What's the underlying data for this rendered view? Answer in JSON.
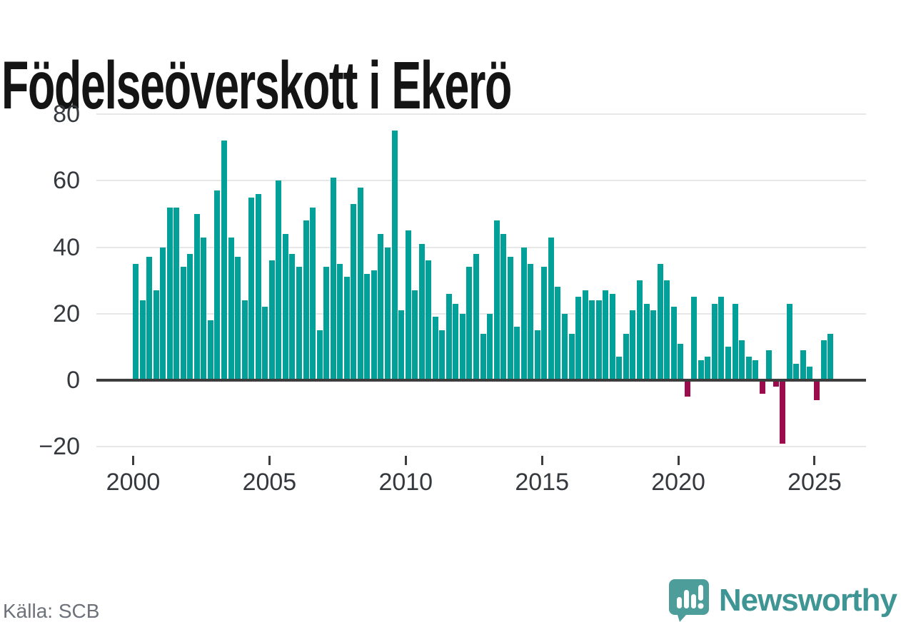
{
  "title": "Födelseöverskott i Ekerö",
  "source": "Källa: SCB",
  "logo": {
    "text": "Newsworthy"
  },
  "colors": {
    "positive_bar": "#01a199",
    "negative_bar": "#9c0c4c",
    "gridline": "#e7e7e7",
    "zero_line": "#3d3d3d",
    "axis_text": "#35393e",
    "title_text": "#141414",
    "source_text": "#6d7179",
    "logo_teal": "#4d9e9b",
    "logo_text_teal": "#3e9593"
  },
  "chart_data": {
    "type": "bar",
    "title": "Födelseöverskott i Ekerö",
    "period": "quarterly",
    "start_year": 2000,
    "values": [
      35,
      24,
      37,
      27,
      40,
      52,
      52,
      34,
      38,
      50,
      43,
      18,
      57,
      72,
      43,
      37,
      24,
      55,
      56,
      22,
      36,
      60,
      44,
      38,
      34,
      48,
      52,
      15,
      34,
      61,
      35,
      31,
      53,
      58,
      32,
      33,
      44,
      40,
      75,
      21,
      45,
      27,
      41,
      36,
      19,
      15,
      26,
      23,
      20,
      34,
      38,
      14,
      20,
      48,
      44,
      37,
      16,
      40,
      35,
      15,
      34,
      43,
      28,
      20,
      14,
      25,
      27,
      24,
      24,
      27,
      26,
      7,
      14,
      21,
      30,
      23,
      21,
      35,
      30,
      22,
      11,
      -5,
      25,
      6,
      7,
      23,
      25,
      10,
      23,
      12,
      7,
      6,
      -4,
      9,
      -2,
      -19,
      23,
      5,
      9,
      4,
      -6,
      12,
      14
    ],
    "x_tick_years": [
      2000,
      2005,
      2010,
      2015,
      2020,
      2025
    ],
    "x_tick_labels": [
      "2000",
      "2005",
      "2010",
      "2015",
      "2020",
      "2025"
    ],
    "y_ticks": [
      80,
      60,
      40,
      20,
      0,
      -20
    ],
    "y_tick_labels": [
      "80",
      "60",
      "40",
      "20",
      "0",
      "−20"
    ],
    "ylim": [
      -20,
      80
    ],
    "xlabel": "",
    "ylabel": "",
    "legend": "none",
    "grid": "horizontal"
  }
}
